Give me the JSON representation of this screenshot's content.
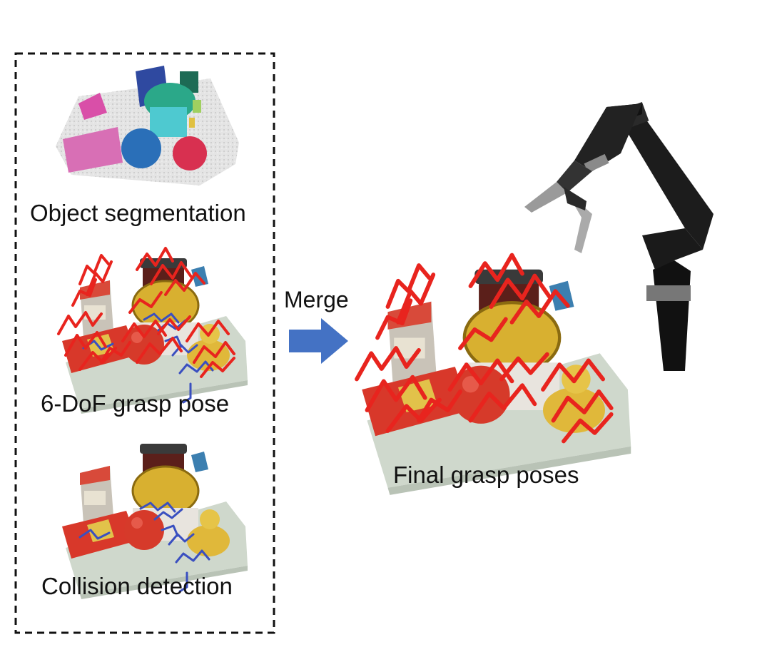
{
  "labels": {
    "segmentation": "Object segmentation",
    "grasp_pose": "6-DoF grasp pose",
    "collision": "Collision detection",
    "merge": "Merge",
    "final": "Final grasp poses"
  },
  "colors": {
    "grasp_red": "#e8241e",
    "collision_blue": "#3a4fc0",
    "arrow_blue": "#4472c4",
    "table": "#cfd8cc",
    "apple": "#d63a2a",
    "jar_lid": "#d8b030",
    "box": "#d8382a",
    "robot": "#1a1a1a"
  },
  "icons": [
    "merge-arrow-icon",
    "robot-arm-icon"
  ]
}
